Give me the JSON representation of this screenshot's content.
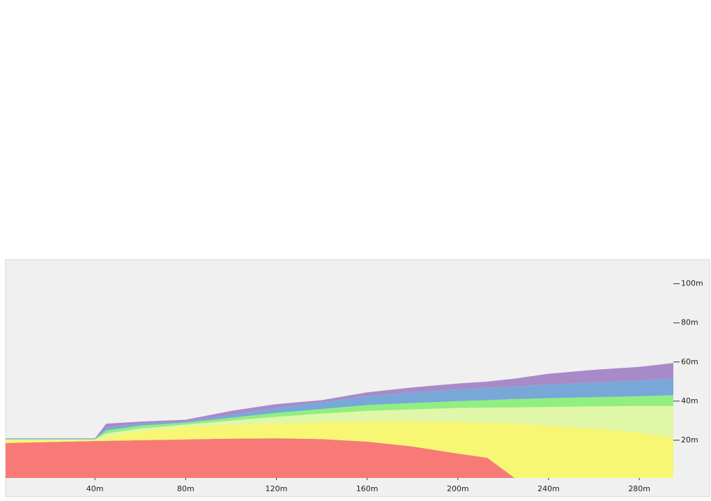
{
  "chart_data": {
    "type": "area",
    "stacked": true,
    "x": [
      0,
      40,
      45,
      60,
      80,
      100,
      120,
      140,
      160,
      180,
      200,
      213,
      225,
      240,
      260,
      280,
      296
    ],
    "series": [
      {
        "color": "#f77a77",
        "values": [
          18.6,
          19.6,
          19.7,
          20,
          20.4,
          20.8,
          21,
          20.6,
          19.3,
          16.8,
          13.2,
          11,
          0,
          0,
          0,
          0,
          0
        ]
      },
      {
        "color": "#f7f774",
        "values": [
          1.4,
          0.4,
          2.3,
          4.6,
          6.4,
          7,
          7.6,
          8.6,
          10.3,
          12.8,
          16.1,
          18,
          28.6,
          27.5,
          26,
          24,
          21.4
        ]
      },
      {
        "color": "#e0f7a8",
        "values": [
          0.3,
          0.3,
          1.5,
          1.4,
          1.2,
          2.2,
          3.4,
          4.4,
          5.4,
          6.2,
          7.2,
          7.7,
          8.2,
          9.5,
          11.3,
          13.5,
          16.1
        ]
      },
      {
        "color": "#90ef80",
        "values": [
          0.3,
          0.3,
          1.5,
          1.5,
          1,
          1.5,
          2,
          2.4,
          3,
          3.2,
          3.5,
          3.8,
          4.2,
          4.5,
          4.7,
          5,
          5.5
        ]
      },
      {
        "color": "#78a8d8",
        "values": [
          0.2,
          0.2,
          1.5,
          1,
          0.6,
          1.5,
          2.5,
          3.5,
          4.5,
          5.5,
          6,
          6.3,
          6.5,
          7,
          7.5,
          8,
          8.5
        ]
      },
      {
        "color": "#a98ac8",
        "values": [
          0.2,
          0.2,
          2,
          1,
          0.9,
          2,
          2,
          1,
          2,
          2.5,
          3,
          3.2,
          4,
          5.5,
          6.5,
          7,
          8
        ]
      }
    ],
    "xlim": [
      0,
      295
    ],
    "ylim": [
      0,
      112
    ],
    "xticks": [
      {
        "value": 40,
        "label": "40m"
      },
      {
        "value": 80,
        "label": "80m"
      },
      {
        "value": 120,
        "label": "120m"
      },
      {
        "value": 160,
        "label": "160m"
      },
      {
        "value": 200,
        "label": "200m"
      },
      {
        "value": 240,
        "label": "240m"
      },
      {
        "value": 280,
        "label": "280m"
      }
    ],
    "yticks": [
      {
        "value": 20,
        "label": "20m"
      },
      {
        "value": 40,
        "label": "40m"
      },
      {
        "value": 60,
        "label": "60m"
      },
      {
        "value": 80,
        "label": "80m"
      },
      {
        "value": 100,
        "label": "100m"
      }
    ]
  }
}
